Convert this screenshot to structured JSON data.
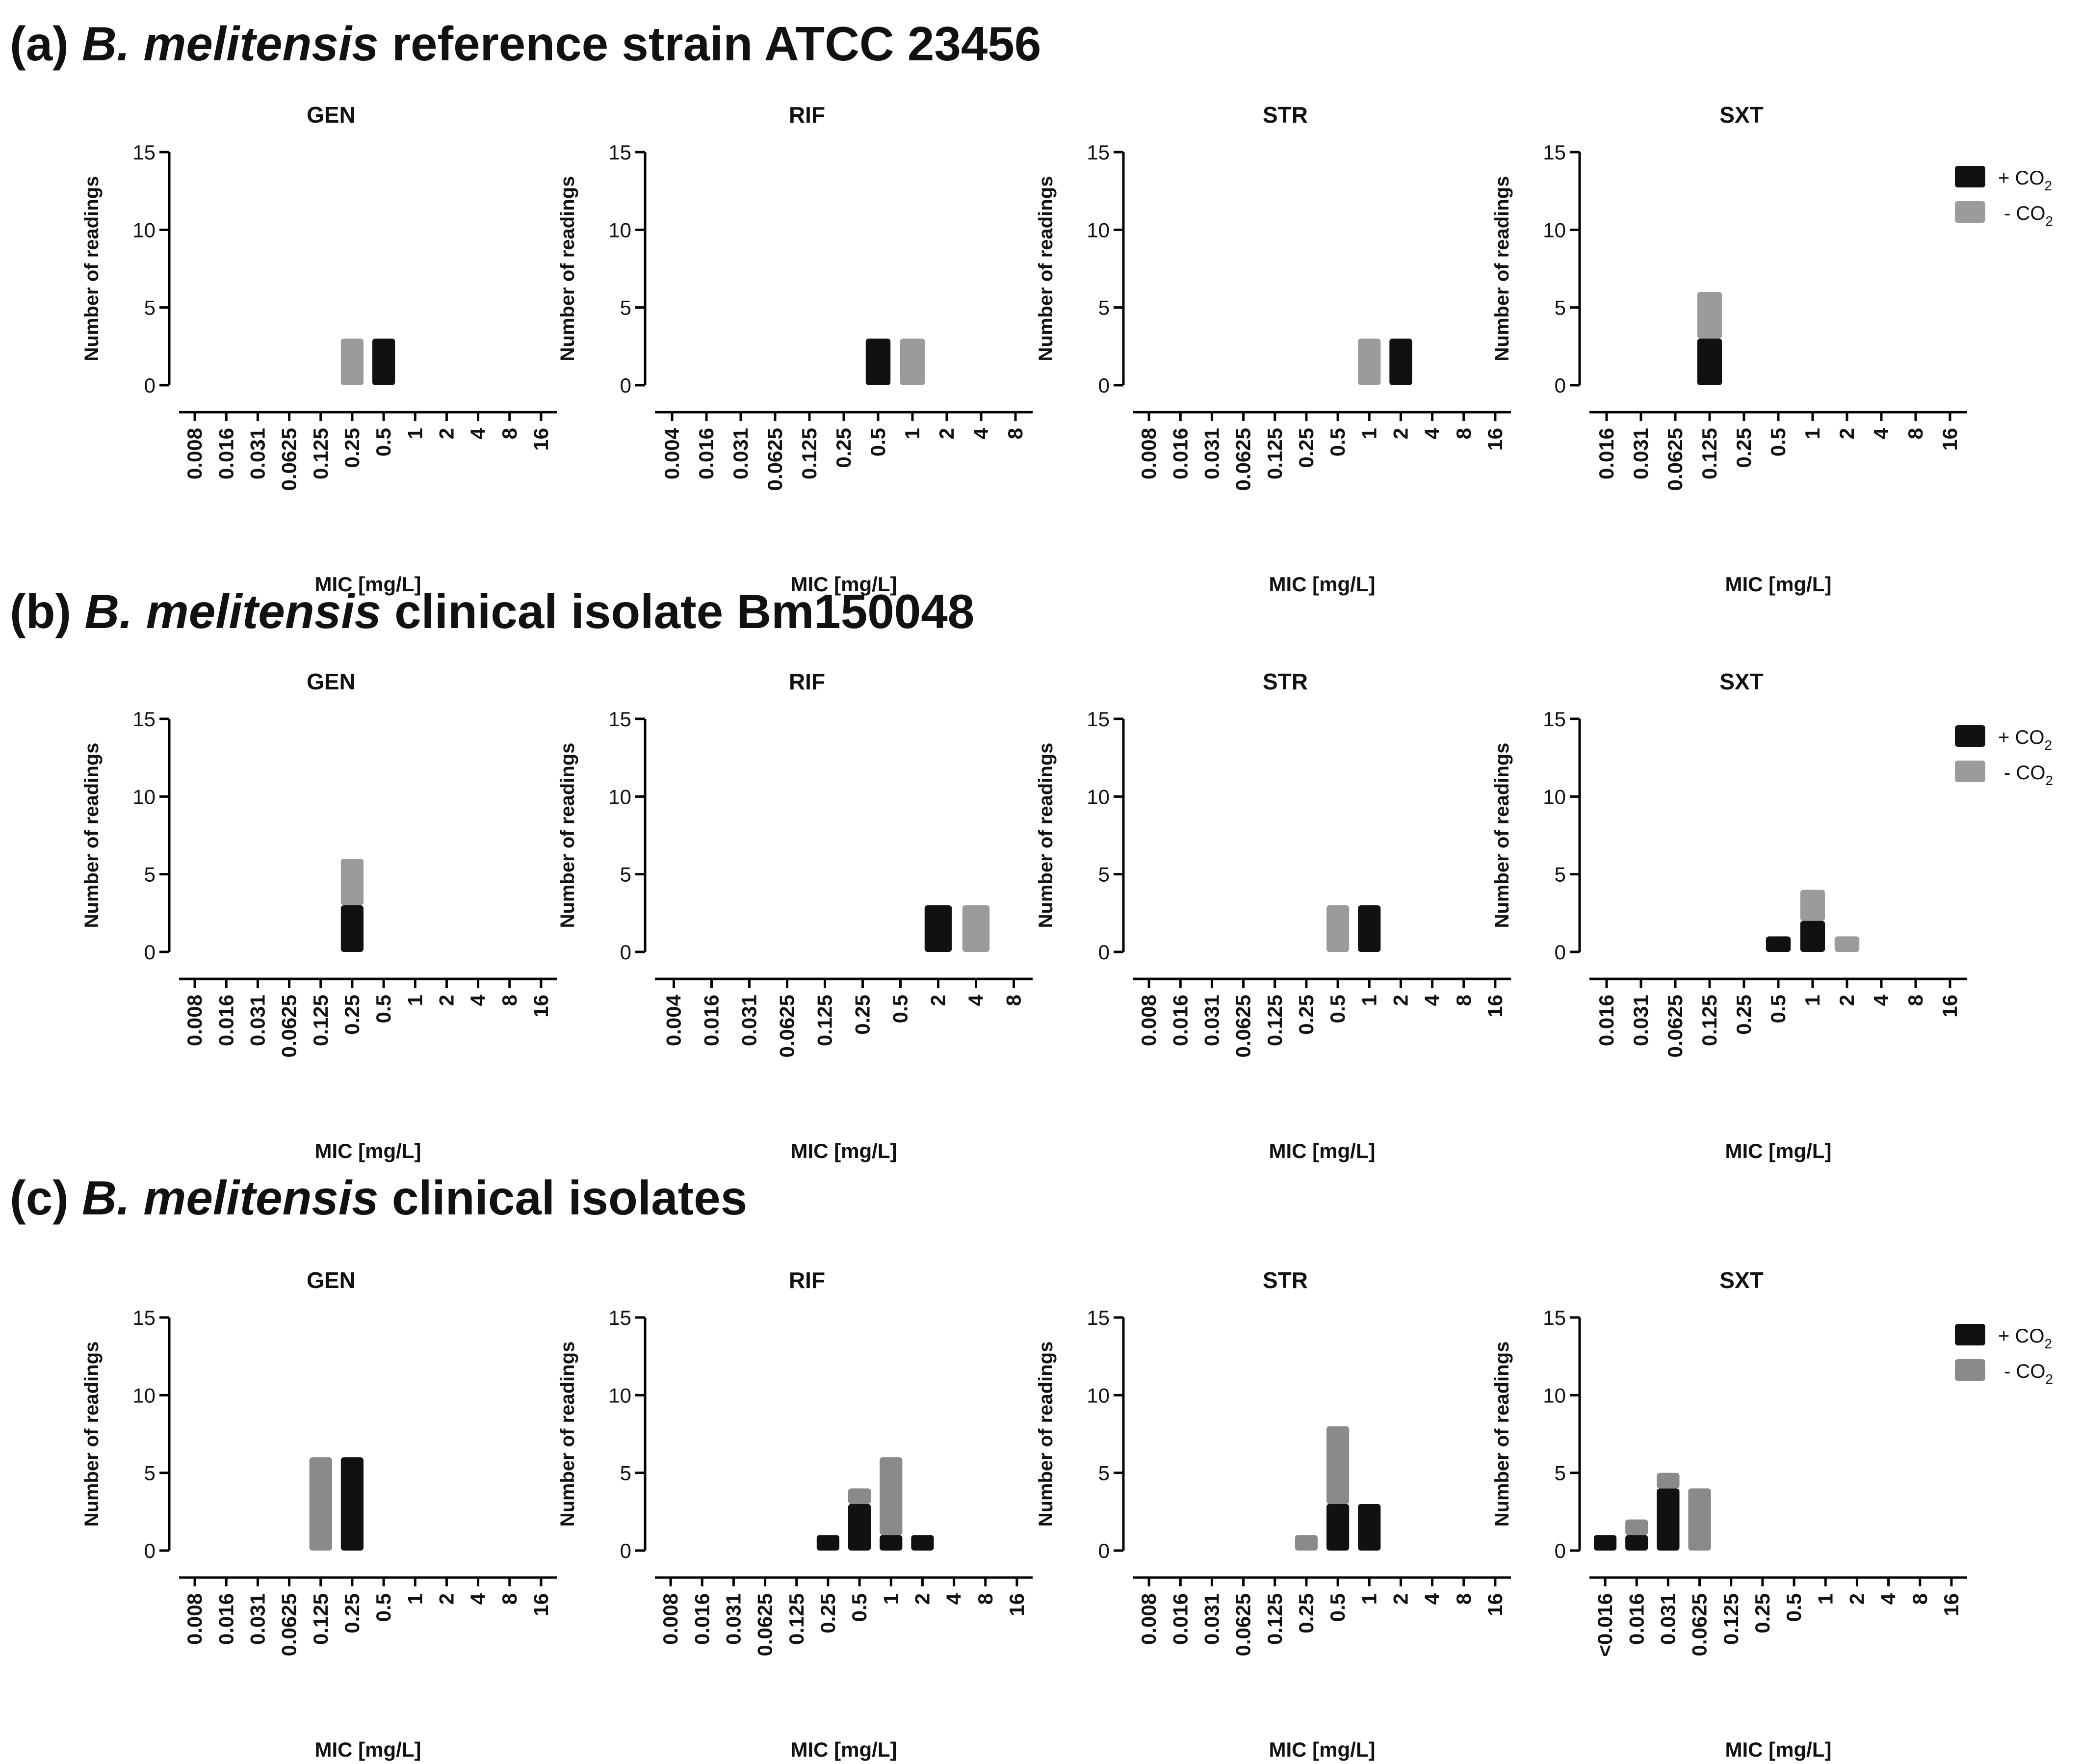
{
  "colors": {
    "plus_co2": "#111111",
    "minus_co2_ab": "#9b9b9b",
    "minus_co2_c": "#8a8a8a",
    "axis": "#000000"
  },
  "rows": [
    {
      "letter": "(a)",
      "species": "B. melitensis",
      "rest": "reference strain ATCC 23456"
    },
    {
      "letter": "(b)",
      "species": "B. melitensis",
      "rest": "clinical isolate Bm150048"
    },
    {
      "letter": "(c)",
      "species": "B. melitensis",
      "rest": "clinical isolates"
    }
  ],
  "legend": {
    "plus": "+ CO",
    "minus": "- CO",
    "subscript": "2"
  },
  "chart_data": [
    {
      "type": "bar",
      "stacking": "stacked",
      "row": "(a)",
      "title": "GEN",
      "xlabel": "MIC [mg/L]",
      "ylabel": "Number of readings",
      "ylim": [
        0,
        15
      ],
      "yticks": [
        "0",
        "5",
        "10",
        "15"
      ],
      "categories": [
        "0.008",
        "0.016",
        "0.031",
        "0.0625",
        "0.125",
        "0.25",
        "0.5",
        "1",
        "2",
        "4",
        "8",
        "16"
      ],
      "series": [
        {
          "name": "+ CO2",
          "values": [
            0,
            0,
            0,
            0,
            0,
            0,
            3,
            0,
            0,
            0,
            0,
            0
          ]
        },
        {
          "name": "- CO2",
          "values": [
            0,
            0,
            0,
            0,
            0,
            3,
            0,
            0,
            0,
            0,
            0,
            0
          ]
        }
      ]
    },
    {
      "type": "bar",
      "stacking": "stacked",
      "row": "(a)",
      "title": "RIF",
      "xlabel": "MIC [mg/L]",
      "ylabel": "Number of readings",
      "ylim": [
        0,
        15
      ],
      "yticks": [
        "0",
        "5",
        "10",
        "15"
      ],
      "categories": [
        "0.004",
        "0.016",
        "0.031",
        "0.0625",
        "0.125",
        "0.25",
        "0.5",
        "1",
        "2",
        "4",
        "8"
      ],
      "series": [
        {
          "name": "+ CO2",
          "values": [
            0,
            0,
            0,
            0,
            0,
            0,
            3,
            0,
            0,
            0,
            0
          ]
        },
        {
          "name": "- CO2",
          "values": [
            0,
            0,
            0,
            0,
            0,
            0,
            0,
            3,
            0,
            0,
            0
          ]
        }
      ]
    },
    {
      "type": "bar",
      "stacking": "stacked",
      "row": "(a)",
      "title": "STR",
      "xlabel": "MIC [mg/L]",
      "ylabel": "Number of readings",
      "ylim": [
        0,
        15
      ],
      "yticks": [
        "0",
        "5",
        "10",
        "15"
      ],
      "categories": [
        "0.008",
        "0.016",
        "0.031",
        "0.0625",
        "0.125",
        "0.25",
        "0.5",
        "1",
        "2",
        "4",
        "8",
        "16"
      ],
      "series": [
        {
          "name": "+ CO2",
          "values": [
            0,
            0,
            0,
            0,
            0,
            0,
            0,
            0,
            3,
            0,
            0,
            0
          ]
        },
        {
          "name": "- CO2",
          "values": [
            0,
            0,
            0,
            0,
            0,
            0,
            0,
            3,
            0,
            0,
            0,
            0
          ]
        }
      ]
    },
    {
      "type": "bar",
      "stacking": "stacked",
      "row": "(a)",
      "title": "SXT",
      "xlabel": "MIC [mg/L]",
      "ylabel": "Number of readings",
      "ylim": [
        0,
        15
      ],
      "yticks": [
        "0",
        "5",
        "10",
        "15"
      ],
      "categories": [
        "0.016",
        "0.031",
        "0.0625",
        "0.125",
        "0.25",
        "0.5",
        "1",
        "2",
        "4",
        "8",
        "16"
      ],
      "series": [
        {
          "name": "+ CO2",
          "values": [
            0,
            0,
            0,
            3,
            0,
            0,
            0,
            0,
            0,
            0,
            0
          ]
        },
        {
          "name": "- CO2",
          "values": [
            0,
            0,
            0,
            3,
            0,
            0,
            0,
            0,
            0,
            0,
            0
          ]
        }
      ]
    },
    {
      "type": "bar",
      "stacking": "stacked",
      "row": "(b)",
      "title": "GEN",
      "xlabel": "MIC [mg/L]",
      "ylabel": "Number of readings",
      "ylim": [
        0,
        15
      ],
      "yticks": [
        "0",
        "5",
        "10",
        "15"
      ],
      "categories": [
        "0.008",
        "0.016",
        "0.031",
        "0.0625",
        "0.125",
        "0.25",
        "0.5",
        "1",
        "2",
        "4",
        "8",
        "16"
      ],
      "series": [
        {
          "name": "+ CO2",
          "values": [
            0,
            0,
            0,
            0,
            0,
            3,
            0,
            0,
            0,
            0,
            0,
            0
          ]
        },
        {
          "name": "- CO2",
          "values": [
            0,
            0,
            0,
            0,
            0,
            3,
            0,
            0,
            0,
            0,
            0,
            0
          ]
        }
      ]
    },
    {
      "type": "bar",
      "stacking": "stacked",
      "row": "(b)",
      "title": "RIF",
      "xlabel": "MIC [mg/L]",
      "ylabel": "Number of readings",
      "ylim": [
        0,
        15
      ],
      "yticks": [
        "0",
        "5",
        "10",
        "15"
      ],
      "categories": [
        "0.004",
        "0.016",
        "0.031",
        "0.0625",
        "0.125",
        "0.25",
        "0.5",
        "2",
        "4",
        "8"
      ],
      "series": [
        {
          "name": "+ CO2",
          "values": [
            0,
            0,
            0,
            0,
            0,
            0,
            0,
            3,
            0,
            0
          ]
        },
        {
          "name": "- CO2",
          "values": [
            0,
            0,
            0,
            0,
            0,
            0,
            0,
            0,
            3,
            0
          ]
        }
      ]
    },
    {
      "type": "bar",
      "stacking": "stacked",
      "row": "(b)",
      "title": "STR",
      "xlabel": "MIC [mg/L]",
      "ylabel": "Number of readings",
      "ylim": [
        0,
        15
      ],
      "yticks": [
        "0",
        "5",
        "10",
        "15"
      ],
      "categories": [
        "0.008",
        "0.016",
        "0.031",
        "0.0625",
        "0.125",
        "0.25",
        "0.5",
        "1",
        "2",
        "4",
        "8",
        "16"
      ],
      "series": [
        {
          "name": "+ CO2",
          "values": [
            0,
            0,
            0,
            0,
            0,
            0,
            0,
            3,
            0,
            0,
            0,
            0
          ]
        },
        {
          "name": "- CO2",
          "values": [
            0,
            0,
            0,
            0,
            0,
            0,
            3,
            0,
            0,
            0,
            0,
            0
          ]
        }
      ]
    },
    {
      "type": "bar",
      "stacking": "stacked",
      "row": "(b)",
      "title": "SXT",
      "xlabel": "MIC [mg/L]",
      "ylabel": "Number of readings",
      "ylim": [
        0,
        15
      ],
      "yticks": [
        "0",
        "5",
        "10",
        "15"
      ],
      "categories": [
        "0.016",
        "0.031",
        "0.0625",
        "0.125",
        "0.25",
        "0.5",
        "1",
        "2",
        "4",
        "8",
        "16"
      ],
      "series": [
        {
          "name": "+ CO2",
          "values": [
            0,
            0,
            0,
            0,
            0,
            1,
            2,
            0,
            0,
            0,
            0
          ]
        },
        {
          "name": "- CO2",
          "values": [
            0,
            0,
            0,
            0,
            0,
            0,
            2,
            1,
            0,
            0,
            0
          ]
        }
      ]
    },
    {
      "type": "bar",
      "stacking": "stacked",
      "row": "(c)",
      "title": "GEN",
      "xlabel": "MIC [mg/L]",
      "ylabel": "Number of readings",
      "ylim": [
        0,
        15
      ],
      "yticks": [
        "0",
        "5",
        "10",
        "15"
      ],
      "categories": [
        "0.008",
        "0.016",
        "0.031",
        "0.0625",
        "0.125",
        "0.25",
        "0.5",
        "1",
        "2",
        "4",
        "8",
        "16"
      ],
      "series": [
        {
          "name": "+ CO2",
          "values": [
            0,
            0,
            0,
            0,
            0,
            6,
            0,
            0,
            0,
            0,
            0,
            0
          ]
        },
        {
          "name": "- CO2",
          "values": [
            0,
            0,
            0,
            0,
            6,
            0,
            0,
            0,
            0,
            0,
            0,
            0
          ]
        }
      ]
    },
    {
      "type": "bar",
      "stacking": "stacked",
      "row": "(c)",
      "title": "RIF",
      "xlabel": "MIC [mg/L]",
      "ylabel": "Number of readings",
      "ylim": [
        0,
        15
      ],
      "yticks": [
        "0",
        "5",
        "10",
        "15"
      ],
      "categories": [
        "0.008",
        "0.016",
        "0.031",
        "0.0625",
        "0.125",
        "0.25",
        "0.5",
        "1",
        "2",
        "4",
        "8",
        "16"
      ],
      "series": [
        {
          "name": "+ CO2",
          "values": [
            0,
            0,
            0,
            0,
            0,
            1,
            3,
            1,
            1,
            0,
            0,
            0
          ]
        },
        {
          "name": "- CO2",
          "values": [
            0,
            0,
            0,
            0,
            0,
            0,
            1,
            5,
            0,
            0,
            0,
            0
          ]
        }
      ]
    },
    {
      "type": "bar",
      "stacking": "stacked",
      "row": "(c)",
      "title": "STR",
      "xlabel": "MIC [mg/L]",
      "ylabel": "Number of readings",
      "ylim": [
        0,
        15
      ],
      "yticks": [
        "0",
        "5",
        "10",
        "15"
      ],
      "categories": [
        "0.008",
        "0.016",
        "0.031",
        "0.0625",
        "0.125",
        "0.25",
        "0.5",
        "1",
        "2",
        "4",
        "8",
        "16"
      ],
      "series": [
        {
          "name": "+ CO2",
          "values": [
            0,
            0,
            0,
            0,
            0,
            0,
            3,
            3,
            0,
            0,
            0,
            0
          ]
        },
        {
          "name": "- CO2",
          "values": [
            0,
            0,
            0,
            0,
            0,
            1,
            5,
            0,
            0,
            0,
            0,
            0
          ]
        }
      ]
    },
    {
      "type": "bar",
      "stacking": "stacked",
      "row": "(c)",
      "title": "SXT",
      "xlabel": "MIC [mg/L]",
      "ylabel": "Number of readings",
      "ylim": [
        0,
        15
      ],
      "yticks": [
        "0",
        "5",
        "10",
        "15"
      ],
      "categories": [
        "<0.016",
        "0.016",
        "0.031",
        "0.0625",
        "0.125",
        "0.25",
        "0.5",
        "1",
        "2",
        "4",
        "8",
        "16"
      ],
      "series": [
        {
          "name": "+ CO2",
          "values": [
            1,
            1,
            4,
            0,
            0,
            0,
            0,
            0,
            0,
            0,
            0,
            0
          ]
        },
        {
          "name": "- CO2",
          "values": [
            0,
            1,
            1,
            4,
            0,
            0,
            0,
            0,
            0,
            0,
            0,
            0
          ]
        }
      ]
    }
  ]
}
